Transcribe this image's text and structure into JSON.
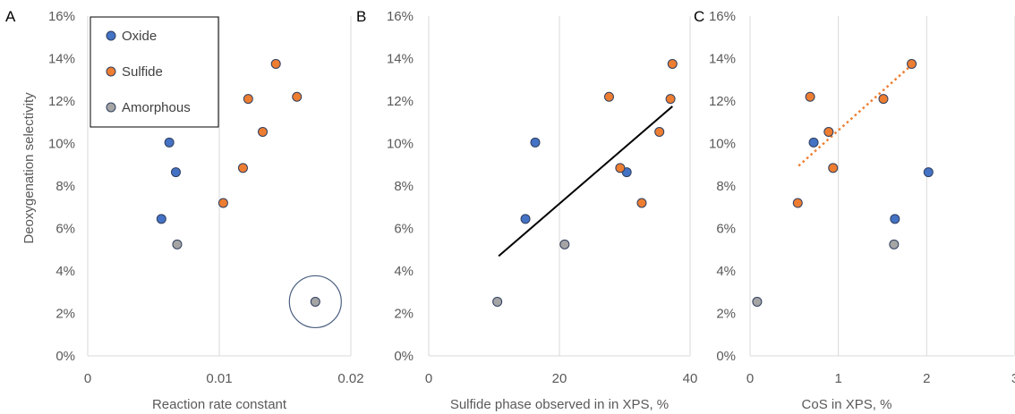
{
  "colors": {
    "oxide": "#4472C4",
    "sulfide": "#ED7D31",
    "amorphous": "#A5A5A5",
    "marker_edge": "#2F3F5F",
    "grid": "#D9D9D9",
    "trend_black": "#000000",
    "trend_dotted": "#ED7D31",
    "highlight_circle": "#4A5F7F"
  },
  "chart_data": [
    {
      "type": "scatter",
      "panel_letter": "A",
      "xlabel": "Reaction rate constant",
      "ylabel": "Deoxygenation selectivity",
      "xlim": [
        0,
        0.02
      ],
      "ylim": [
        0,
        16
      ],
      "xticks": [
        0,
        0.01,
        0.02
      ],
      "xtick_labels": [
        "0",
        "0.01",
        "0.02"
      ],
      "yticks": [
        0,
        2,
        4,
        6,
        8,
        10,
        12,
        14,
        16
      ],
      "ytick_labels": [
        "0%",
        "2%",
        "4%",
        "6%",
        "8%",
        "10%",
        "12%",
        "14%",
        "16%"
      ],
      "grid": "vertical",
      "legend": {
        "placement": "top-left",
        "entries": [
          "Oxide",
          "Sulfide",
          "Amorphous"
        ]
      },
      "series": [
        {
          "name": "Oxide",
          "color_key": "oxide",
          "points": [
            [
              0.0062,
              10.05
            ],
            [
              0.0067,
              8.65
            ],
            [
              0.0056,
              6.45
            ]
          ]
        },
        {
          "name": "Sulfide",
          "color_key": "sulfide",
          "points": [
            [
              0.0143,
              13.75
            ],
            [
              0.0122,
              12.1
            ],
            [
              0.0159,
              12.2
            ],
            [
              0.0133,
              10.55
            ],
            [
              0.0118,
              8.85
            ],
            [
              0.0103,
              7.2
            ]
          ]
        },
        {
          "name": "Amorphous",
          "color_key": "amorphous",
          "points": [
            [
              0.0068,
              5.25
            ],
            [
              0.0173,
              2.55
            ]
          ]
        }
      ],
      "highlight": {
        "x": 0.0173,
        "y": 2.55
      }
    },
    {
      "type": "scatter",
      "panel_letter": "B",
      "xlabel": "Sulfide phase observed in in XPS, %",
      "ylabel": "",
      "xlim": [
        0,
        40
      ],
      "ylim": [
        0,
        16
      ],
      "xticks": [
        0,
        20,
        40
      ],
      "xtick_labels": [
        "0",
        "20",
        "40"
      ],
      "yticks": [
        0,
        2,
        4,
        6,
        8,
        10,
        12,
        14,
        16
      ],
      "ytick_labels": [
        "0%",
        "2%",
        "4%",
        "6%",
        "8%",
        "10%",
        "12%",
        "14%",
        "16%"
      ],
      "grid": "vertical",
      "series": [
        {
          "name": "Oxide",
          "color_key": "oxide",
          "points": [
            [
              16.3,
              10.05
            ],
            [
              30.3,
              8.65
            ],
            [
              14.8,
              6.45
            ]
          ]
        },
        {
          "name": "Sulfide",
          "color_key": "sulfide",
          "points": [
            [
              37.3,
              13.75
            ],
            [
              27.6,
              12.2
            ],
            [
              37.0,
              12.1
            ],
            [
              35.3,
              10.55
            ],
            [
              29.3,
              8.85
            ],
            [
              32.6,
              7.2
            ]
          ]
        },
        {
          "name": "Amorphous",
          "color_key": "amorphous",
          "points": [
            [
              20.8,
              5.25
            ],
            [
              10.5,
              2.55
            ]
          ]
        }
      ],
      "trendline": {
        "style": "solid",
        "color_key": "trend_black",
        "x": [
          10.7,
          37.3
        ],
        "y": [
          4.7,
          11.75
        ]
      }
    },
    {
      "type": "scatter",
      "panel_letter": "C",
      "xlabel": "CoS in XPS, %",
      "ylabel": "",
      "xlim": [
        0,
        3
      ],
      "ylim": [
        0,
        16
      ],
      "xticks": [
        0,
        1,
        2,
        3
      ],
      "xtick_labels": [
        "0",
        "1",
        "2",
        "3"
      ],
      "yticks": [
        0,
        2,
        4,
        6,
        8,
        10,
        12,
        14,
        16
      ],
      "ytick_labels": [
        "0%",
        "2%",
        "4%",
        "6%",
        "8%",
        "10%",
        "12%",
        "14%",
        "16%"
      ],
      "grid": "vertical",
      "series": [
        {
          "name": "Oxide",
          "color_key": "oxide",
          "points": [
            [
              0.72,
              10.05
            ],
            [
              2.02,
              8.65
            ],
            [
              1.64,
              6.45
            ]
          ]
        },
        {
          "name": "Sulfide",
          "color_key": "sulfide",
          "points": [
            [
              1.83,
              13.75
            ],
            [
              0.68,
              12.2
            ],
            [
              1.51,
              12.1
            ],
            [
              0.89,
              10.55
            ],
            [
              0.94,
              8.85
            ],
            [
              0.54,
              7.2
            ]
          ]
        },
        {
          "name": "Amorphous",
          "color_key": "amorphous",
          "points": [
            [
              1.63,
              5.25
            ],
            [
              0.08,
              2.55
            ]
          ]
        }
      ],
      "trendline": {
        "style": "dotted",
        "color_key": "trend_dotted",
        "x": [
          0.55,
          1.83
        ],
        "y": [
          8.95,
          13.7
        ]
      }
    }
  ]
}
